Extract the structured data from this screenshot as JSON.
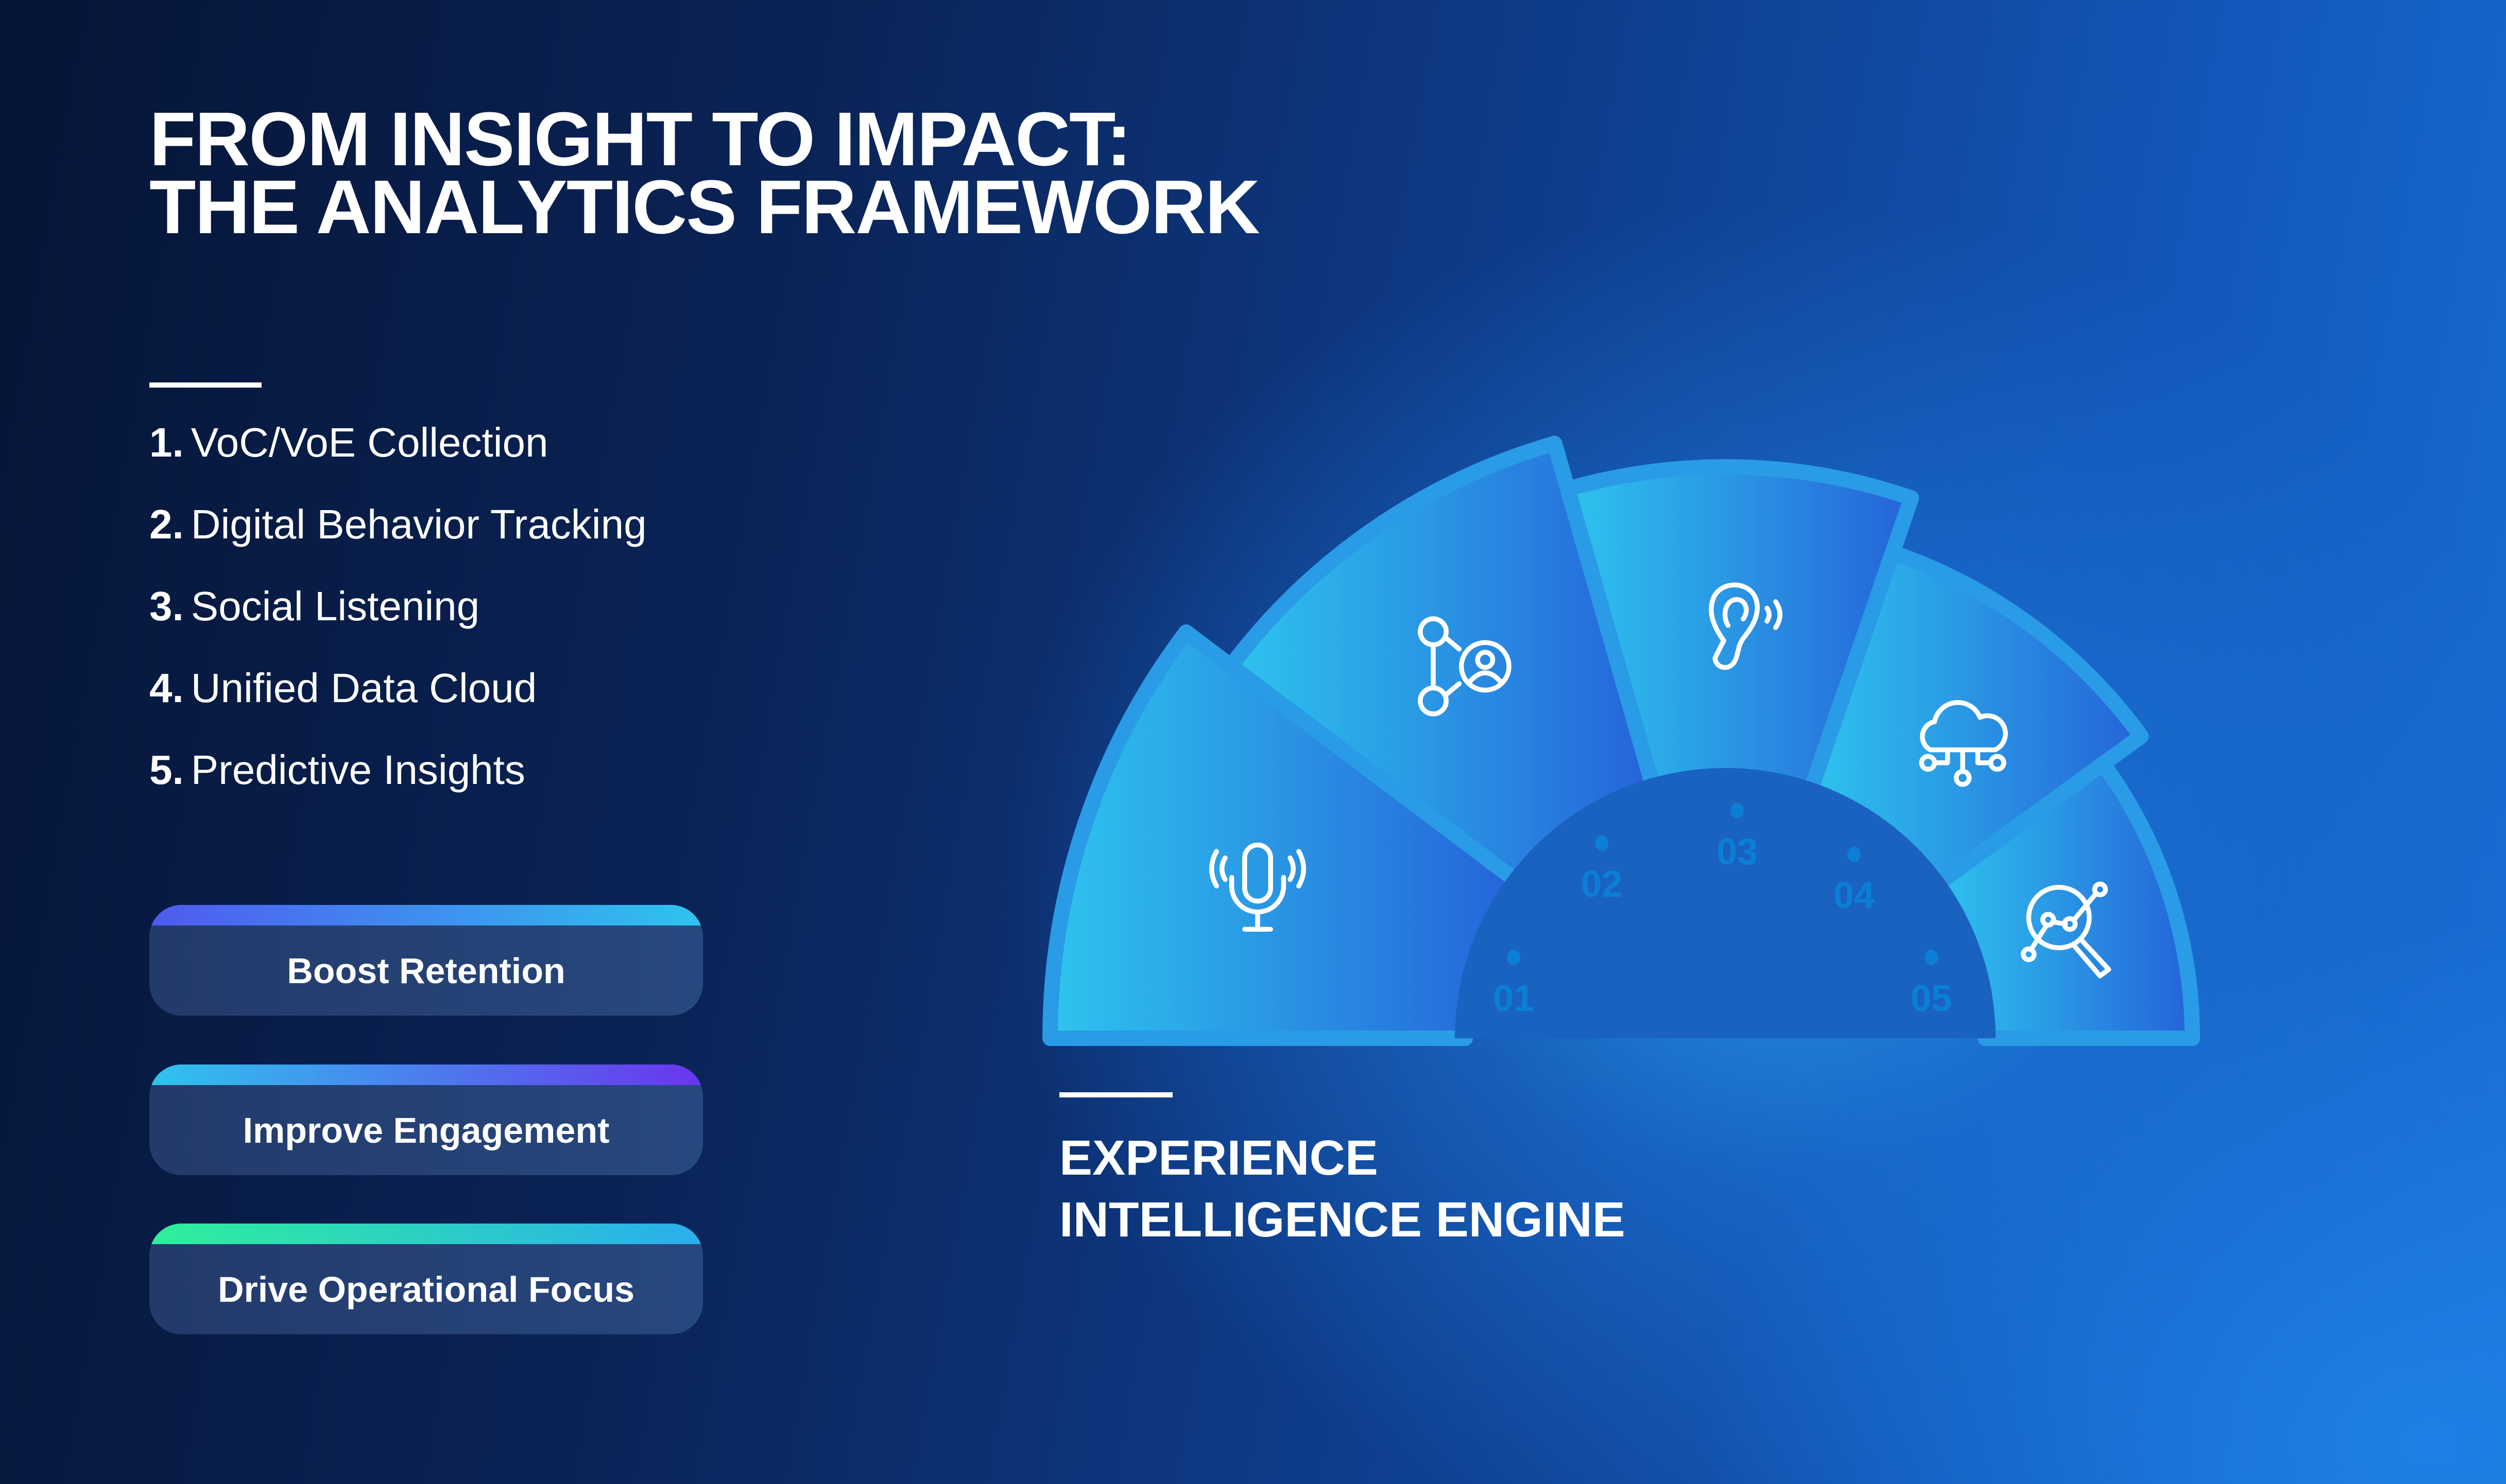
{
  "header": {
    "title_line1": "FROM INSIGHT TO IMPACT:",
    "title_line2": "THE ANALYTICS FRAMEWORK"
  },
  "steps": [
    {
      "num": "1.",
      "label": "VoC/VoE Collection"
    },
    {
      "num": "2.",
      "label": "Digital Behavior Tracking"
    },
    {
      "num": "3.",
      "label": "Social Listening"
    },
    {
      "num": "4.",
      "label": "Unified Data Cloud"
    },
    {
      "num": "5.",
      "label": "Predictive Insights"
    }
  ],
  "outcomes": [
    {
      "label": "Boost Retention",
      "stripe": [
        "#4f5af0",
        "#2ec4ee"
      ]
    },
    {
      "label": "Improve Engagement",
      "stripe": [
        "#2ec4ee",
        "#6a35ee"
      ]
    },
    {
      "label": "Drive Operational Focus",
      "stripe": [
        "#2ef09a",
        "#2aaeee"
      ]
    }
  ],
  "engine": {
    "line1": "EXPERIENCE",
    "line2": "INTELLIGENCE ENGINE"
  },
  "segments": [
    {
      "num": "01",
      "icon": "microphone-icon"
    },
    {
      "num": "02",
      "icon": "people-network-icon"
    },
    {
      "num": "03",
      "icon": "ear-icon"
    },
    {
      "num": "04",
      "icon": "cloud-network-icon"
    },
    {
      "num": "05",
      "icon": "magnifier-analytics-icon"
    }
  ],
  "colors": {
    "segment_light": "#2ec4ee",
    "segment_dark": "#2563d9",
    "hub": "#1a62c0",
    "number": "#0b7fd6"
  }
}
